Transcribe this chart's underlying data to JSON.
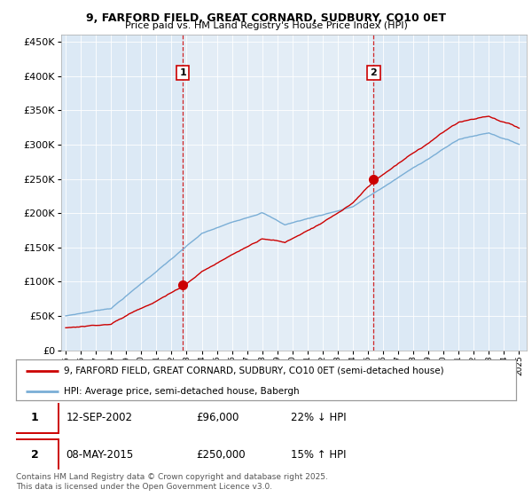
{
  "title": "9, FARFORD FIELD, GREAT CORNARD, SUDBURY, CO10 0ET",
  "subtitle": "Price paid vs. HM Land Registry's House Price Index (HPI)",
  "ylim": [
    0,
    460000
  ],
  "yticks": [
    0,
    50000,
    100000,
    150000,
    200000,
    250000,
    300000,
    350000,
    400000,
    450000
  ],
  "ytick_labels": [
    "£0",
    "£50K",
    "£100K",
    "£150K",
    "£200K",
    "£250K",
    "£300K",
    "£350K",
    "£400K",
    "£450K"
  ],
  "background_color": "#dce9f5",
  "highlight_color": "#e8f0f8",
  "red_line_color": "#cc0000",
  "blue_line_color": "#7aaed6",
  "sale1_year": 2002.75,
  "sale1_price": 96000,
  "sale2_year": 2015.37,
  "sale2_price": 250000,
  "legend_red": "9, FARFORD FIELD, GREAT CORNARD, SUDBURY, CO10 0ET (semi-detached house)",
  "legend_blue": "HPI: Average price, semi-detached house, Babergh",
  "note1_label": "1",
  "note1_date": "12-SEP-2002",
  "note1_price": "£96,000",
  "note1_hpi": "22% ↓ HPI",
  "note2_label": "2",
  "note2_date": "08-MAY-2015",
  "note2_price": "£250,000",
  "note2_hpi": "15% ↑ HPI",
  "footer": "Contains HM Land Registry data © Crown copyright and database right 2025.\nThis data is licensed under the Open Government Licence v3.0."
}
